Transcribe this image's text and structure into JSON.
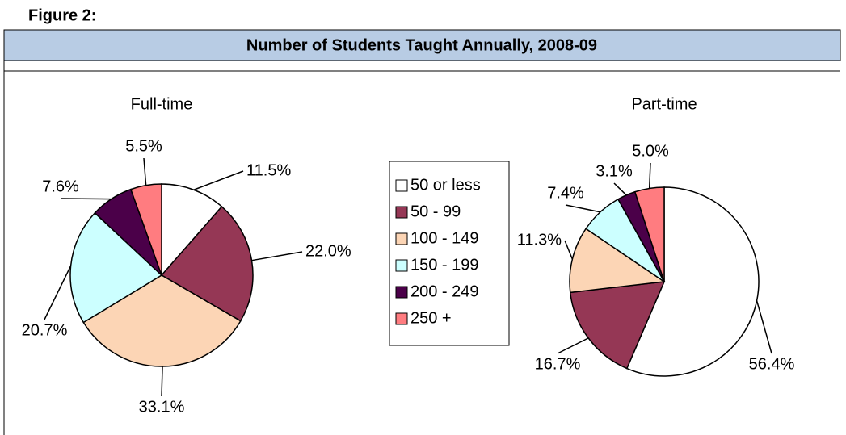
{
  "figure_label": "Figure 2:",
  "title": "Number of Students Taught Annually, 2008-09",
  "chart_data": [
    {
      "type": "pie",
      "title": "Full-time",
      "categories": [
        "50 or less",
        "50 - 99",
        "100 - 149",
        "150 - 199",
        "200 - 249",
        "250 +"
      ],
      "values": [
        11.5,
        22.0,
        33.1,
        20.7,
        7.6,
        5.5
      ],
      "value_labels": [
        "11.5%",
        "22.0%",
        "33.1%",
        "20.7%",
        "7.6%",
        "5.5%"
      ],
      "colors": [
        "#ffffff",
        "#953755",
        "#fcd5b5",
        "#ccffff",
        "#4b0049",
        "#ff7c80"
      ]
    },
    {
      "type": "pie",
      "title": "Part-time",
      "categories": [
        "50 or less",
        "50 - 99",
        "100 - 149",
        "150 - 199",
        "200 - 249",
        "250 +"
      ],
      "values": [
        56.4,
        16.7,
        11.3,
        7.4,
        3.1,
        5.0
      ],
      "value_labels": [
        "56.4%",
        "16.7%",
        "11.3%",
        "7.4%",
        "3.1%",
        "5.0%"
      ],
      "colors": [
        "#ffffff",
        "#953755",
        "#fcd5b5",
        "#ccffff",
        "#4b0049",
        "#ff7c80"
      ]
    }
  ]
}
